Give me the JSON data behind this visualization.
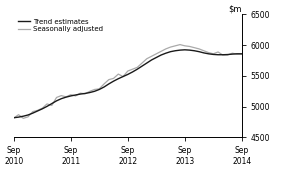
{
  "ylim": [
    4500,
    6500
  ],
  "yticks": [
    4500,
    5000,
    5500,
    6000,
    6500
  ],
  "xtick_labels": [
    "Sep\n2010",
    "Sep\n2011",
    "Sep\n2012",
    "Sep\n2013",
    "Sep\n2014"
  ],
  "legend_entries": [
    "Trend estimates",
    "Seasonally adjusted"
  ],
  "trend_color": "#1a1a1a",
  "seasonal_color": "#aaaaaa",
  "background_color": "#ffffff",
  "trend_data": [
    4820,
    4830,
    4845,
    4865,
    4895,
    4930,
    4965,
    5005,
    5050,
    5095,
    5130,
    5155,
    5175,
    5190,
    5205,
    5215,
    5230,
    5250,
    5280,
    5320,
    5370,
    5415,
    5455,
    5490,
    5525,
    5565,
    5610,
    5660,
    5710,
    5760,
    5800,
    5840,
    5870,
    5895,
    5910,
    5920,
    5925,
    5920,
    5910,
    5895,
    5875,
    5860,
    5850,
    5845,
    5845,
    5848,
    5855,
    5860,
    5860
  ],
  "seasonal_data": [
    4815,
    4870,
    4810,
    4835,
    4920,
    4940,
    4975,
    5045,
    5020,
    5150,
    5180,
    5160,
    5195,
    5175,
    5220,
    5210,
    5250,
    5280,
    5290,
    5370,
    5440,
    5460,
    5530,
    5490,
    5580,
    5610,
    5640,
    5710,
    5780,
    5820,
    5860,
    5900,
    5940,
    5970,
    5990,
    6010,
    5990,
    5980,
    5960,
    5940,
    5910,
    5880,
    5860,
    5890,
    5840,
    5840,
    5870,
    5855,
    5855
  ],
  "n_points": 49,
  "xtick_positions": [
    0,
    12,
    24,
    36,
    48
  ]
}
